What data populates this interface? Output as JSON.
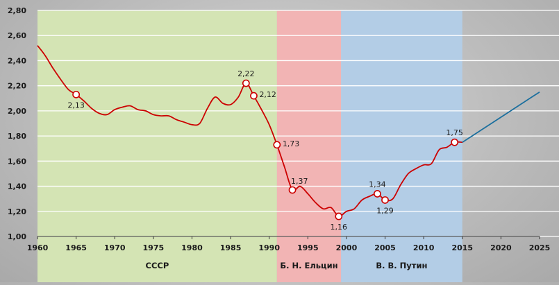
{
  "chart_data": {
    "type": "line",
    "title": "",
    "xlabel": "",
    "ylabel": "",
    "xlim": [
      1960,
      2025
    ],
    "ylim": [
      1.0,
      2.8
    ],
    "x_ticks": [
      "1960",
      "1965",
      "1970",
      "1975",
      "1980",
      "1985",
      "1990",
      "1995",
      "2000",
      "2005",
      "2010",
      "2015",
      "2020",
      "2025"
    ],
    "y_ticks": [
      "1,00",
      "1,20",
      "1,40",
      "1,60",
      "1,80",
      "2,00",
      "2,20",
      "2,40",
      "2,60",
      "2,80"
    ],
    "grid": true,
    "periods": [
      {
        "label": "СССР",
        "from": 1960,
        "to": 1991,
        "color": "#d4e4b4"
      },
      {
        "label": "Б. Н. Ельцин",
        "from": 1991,
        "to": 1999.3,
        "color": "#f2b4b4"
      },
      {
        "label": "В. В. Путин",
        "from": 1999.3,
        "to": 2015,
        "color": "#b3cde6"
      }
    ],
    "series": [
      {
        "color": "#cc0000",
        "x": [
          1960,
          1961,
          1962,
          1963,
          1964,
          1965,
          1966,
          1967,
          1968,
          1969,
          1970,
          1971,
          1972,
          1973,
          1974,
          1975,
          1976,
          1977,
          1978,
          1979,
          1980,
          1981,
          1982,
          1983,
          1984,
          1985,
          1986,
          1987,
          1988,
          1989,
          1990,
          1991,
          1992,
          1993,
          1994,
          1995,
          1996,
          1997,
          1998,
          1999,
          2000,
          2001,
          2002,
          2003,
          2004,
          2005,
          2006,
          2007,
          2008,
          2009,
          2010,
          2011,
          2012,
          2013,
          2014,
          2015
        ],
        "y": [
          2.52,
          2.44,
          2.34,
          2.25,
          2.17,
          2.13,
          2.08,
          2.02,
          1.98,
          1.97,
          2.01,
          2.03,
          2.04,
          2.01,
          2.0,
          1.97,
          1.96,
          1.96,
          1.93,
          1.91,
          1.89,
          1.9,
          2.02,
          2.11,
          2.06,
          2.05,
          2.11,
          2.22,
          2.12,
          2.01,
          1.89,
          1.73,
          1.55,
          1.37,
          1.4,
          1.34,
          1.27,
          1.22,
          1.23,
          1.16,
          1.2,
          1.22,
          1.29,
          1.32,
          1.34,
          1.29,
          1.3,
          1.41,
          1.5,
          1.54,
          1.57,
          1.58,
          1.69,
          1.71,
          1.75,
          1.75
        ]
      },
      {
        "color": "#1b6f9e",
        "x": [
          2015,
          2025
        ],
        "y": [
          1.75,
          2.15
        ]
      }
    ],
    "annotations": [
      {
        "x": 1965,
        "y": 2.13,
        "text": "2,13",
        "pos": "below"
      },
      {
        "x": 1987,
        "y": 2.22,
        "text": "2,22",
        "pos": "above"
      },
      {
        "x": 1988,
        "y": 2.12,
        "text": "2,12",
        "pos": "right"
      },
      {
        "x": 1991,
        "y": 1.73,
        "text": "1,73",
        "pos": "right"
      },
      {
        "x": 1993,
        "y": 1.37,
        "text": "1,37",
        "pos": "above-right"
      },
      {
        "x": 1999,
        "y": 1.16,
        "text": "1,16",
        "pos": "below"
      },
      {
        "x": 2004,
        "y": 1.34,
        "text": "1,34",
        "pos": "above"
      },
      {
        "x": 2005,
        "y": 1.29,
        "text": "1,29",
        "pos": "below"
      },
      {
        "x": 2014,
        "y": 1.75,
        "text": "1,75",
        "pos": "above"
      }
    ]
  }
}
